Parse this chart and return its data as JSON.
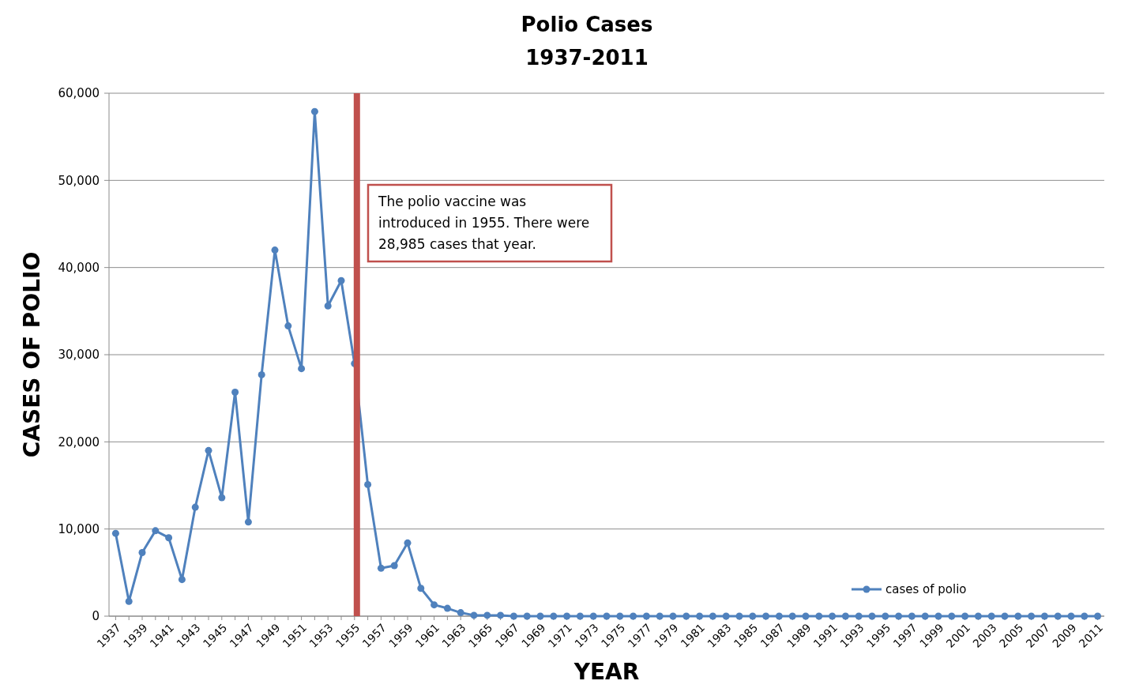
{
  "chart_data": {
    "type": "line",
    "title": "Polio Cases",
    "subtitle": "1937-2011",
    "xlabel": "YEAR",
    "ylabel": "CASES OF POLIO",
    "categories": [
      "1937",
      null,
      "1939",
      null,
      "1941",
      null,
      "1943",
      null,
      "1945",
      null,
      "1947",
      null,
      "1949",
      null,
      "1951",
      null,
      "1953",
      null,
      "1955",
      null,
      "1957",
      null,
      "1959",
      null,
      "1961",
      null,
      "1963",
      null,
      "1965",
      null,
      "1967",
      null,
      "1969",
      null,
      "1971",
      null,
      "1973",
      null,
      "1975",
      null,
      "1977",
      null,
      "1979",
      null,
      "1981",
      null,
      "1983",
      null,
      "1985",
      null,
      "1987",
      null,
      "1989",
      null,
      "1991",
      null,
      "1993",
      null,
      "1995",
      null,
      "1997",
      null,
      "1999",
      null,
      "2001",
      null,
      "2003",
      null,
      "2005",
      null,
      "2007",
      null,
      "2009",
      null,
      "2011"
    ],
    "series": [
      {
        "name": "cases of polio",
        "color": "#4f81bd",
        "values": [
          9500,
          1700,
          7300,
          9800,
          9000,
          4200,
          12500,
          19000,
          13600,
          25700,
          10800,
          27700,
          42000,
          33300,
          28400,
          57900,
          35600,
          38500,
          28985,
          15100,
          5500,
          5800,
          8400,
          3200,
          1300,
          900,
          400,
          100,
          100,
          100,
          0,
          0,
          0,
          0,
          0,
          0,
          0,
          0,
          0,
          0,
          0,
          0,
          0,
          0,
          0,
          0,
          0,
          0,
          0,
          0,
          0,
          0,
          0,
          0,
          0,
          0,
          0,
          0,
          0,
          0,
          0,
          0,
          0,
          0,
          0,
          0,
          0,
          0,
          0,
          0,
          0,
          0,
          0,
          0,
          0
        ]
      }
    ],
    "ylim": [
      0,
      60000
    ],
    "yticks": [
      {
        "value": 0,
        "label": "0"
      },
      {
        "value": 10000,
        "label": "10,000"
      },
      {
        "value": 20000,
        "label": "20,000"
      },
      {
        "value": 30000,
        "label": "30,000"
      },
      {
        "value": 40000,
        "label": "40,000"
      },
      {
        "value": 50000,
        "label": "50,000"
      },
      {
        "value": 60000,
        "label": "60,000"
      }
    ],
    "grid": "y",
    "legend": "bottom right",
    "marker": "circle",
    "line_style": "solid",
    "ref_lines": [
      {
        "axis": "x",
        "value": "1955",
        "color": "#c0504d"
      }
    ],
    "annotations": [
      "The polio vaccine was introduced in 1955. There were 28,985 cases that year."
    ]
  }
}
